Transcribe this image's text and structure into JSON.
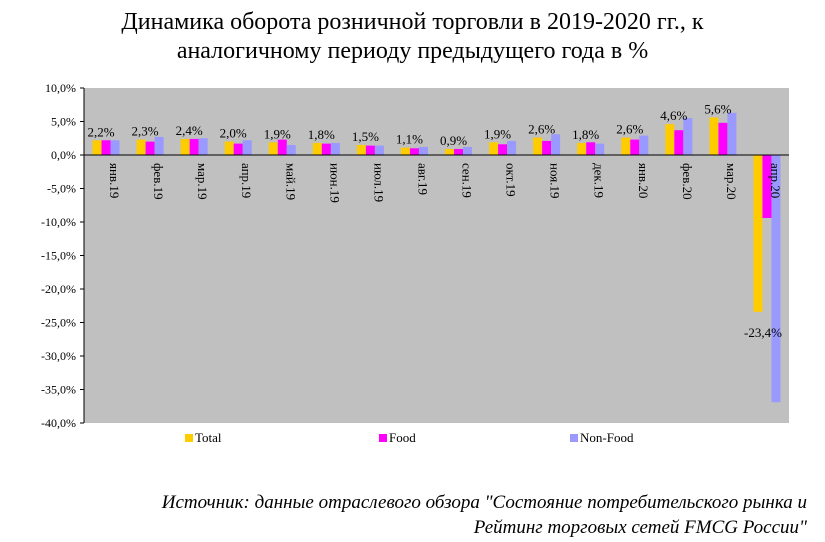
{
  "chart_data": {
    "type": "bar",
    "title_lines": [
      "Динамика оборота розничной торговли в 2019-2020 гг., к",
      "аналогичному периоду предыдущего года в %"
    ],
    "categories": [
      "янв.19",
      "фев.19",
      "мар.19",
      "апр.19",
      "май.19",
      "июн.19",
      "июл.19",
      "авг.19",
      "сен.19",
      "окт.19",
      "ноя.19",
      "дек.19",
      "янв.20",
      "фев.20",
      "мар.20",
      "апр.20"
    ],
    "series": [
      {
        "name": "Total",
        "color": "#FFCC00",
        "values": [
          2.2,
          2.3,
          2.4,
          2.0,
          1.9,
          1.8,
          1.5,
          1.1,
          0.9,
          1.9,
          2.6,
          1.8,
          2.6,
          4.6,
          5.6,
          -23.4
        ]
      },
      {
        "name": "Food",
        "color": "#FF00FF",
        "values": [
          2.2,
          2.0,
          2.4,
          1.7,
          2.3,
          1.7,
          1.4,
          1.0,
          0.9,
          1.6,
          2.1,
          1.9,
          2.3,
          3.7,
          4.8,
          -9.4
        ]
      },
      {
        "name": "Non-Food",
        "color": "#9999FF",
        "values": [
          2.2,
          2.7,
          2.5,
          2.2,
          1.5,
          1.8,
          1.4,
          1.2,
          1.2,
          2.1,
          3.1,
          1.7,
          2.9,
          5.5,
          6.3,
          -36.9
        ]
      }
    ],
    "data_labels": [
      "2,2%",
      "2,3%",
      "2,4%",
      "2,0%",
      "1,9%",
      "1,8%",
      "1,5%",
      "1,1%",
      "0,9%",
      "1,9%",
      "2,6%",
      "1,8%",
      "2,6%",
      "4,6%",
      "5,6%",
      "-23,4%"
    ],
    "y_ticks": [
      "10,0%",
      "5,0%",
      "0,0%",
      "-5,0%",
      "-10,0%",
      "-15,0%",
      "-20,0%",
      "-25,0%",
      "-30,0%",
      "-35,0%",
      "-40,0%"
    ],
    "ylim": [
      -40,
      10
    ],
    "y_step": 5,
    "plot_background": "#C0C0C0",
    "legend_position": "bottom",
    "xlabel": "",
    "ylabel": ""
  },
  "source_lines": [
    "Источник: данные отраслевого обзора \"Состояние потребительского рынка и",
    "Рейтинг торговых сетей FMCG России\""
  ]
}
